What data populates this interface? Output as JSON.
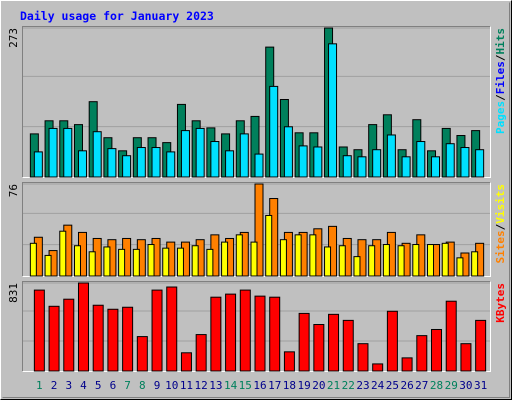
{
  "chart_data": [
    {
      "type": "bar",
      "title": "Daily usage for January 2023",
      "ylim": [
        0,
        273
      ],
      "yticks": [
        273
      ],
      "legend_separator": "/",
      "series": [
        {
          "name": "Hits",
          "color": "#00805c",
          "values": [
            79,
            103,
            103,
            96,
            138,
            72,
            48,
            72,
            72,
            63,
            133,
            103,
            90,
            79,
            103,
            111,
            238,
            142,
            81,
            81,
            273,
            55,
            50,
            96,
            114,
            50,
            105,
            48,
            89,
            76,
            85
          ]
        },
        {
          "name": "Files",
          "color": "#0000ff"
        },
        {
          "name": "Pages",
          "color": "#00e0ff",
          "values": [
            46,
            89,
            89,
            48,
            83,
            52,
            39,
            54,
            54,
            46,
            85,
            89,
            65,
            48,
            79,
            42,
            166,
            92,
            57,
            55,
            244,
            39,
            37,
            50,
            77,
            37,
            65,
            37,
            61,
            54,
            50
          ]
        }
      ]
    },
    {
      "type": "bar",
      "ylim": [
        0,
        76
      ],
      "yticks": [
        76
      ],
      "legend_separator": "/",
      "series": [
        {
          "name": "Visits",
          "color": "#ffff00",
          "values": [
            27,
            17,
            37,
            25,
            20,
            24,
            22,
            22,
            26,
            23,
            23,
            25,
            22,
            28,
            34,
            28,
            50,
            30,
            34,
            34,
            24,
            25,
            16,
            25,
            26,
            25,
            26,
            26,
            27,
            15,
            20
          ]
        },
        {
          "name": "Sites",
          "color": "#ff8000",
          "values": [
            32,
            21,
            42,
            36,
            31,
            30,
            31,
            30,
            31,
            28,
            28,
            30,
            34,
            31,
            36,
            76,
            64,
            36,
            36,
            39,
            41,
            31,
            30,
            30,
            36,
            27,
            34,
            26,
            28,
            19,
            27
          ]
        }
      ]
    },
    {
      "type": "bar",
      "ylim": [
        0,
        831
      ],
      "yticks": [
        831
      ],
      "series": [
        {
          "name": "KBytes",
          "color": "#ff0000",
          "values": [
            764,
            611,
            678,
            831,
            621,
            583,
            602,
            325,
            764,
            793,
            172,
            344,
            697,
            726,
            764,
            707,
            697,
            181,
            544,
            439,
            535,
            478,
            258,
            67,
            564,
            124,
            334,
            392,
            659,
            258,
            478
          ]
        }
      ],
      "categories": [
        "1",
        "2",
        "3",
        "4",
        "5",
        "6",
        "7",
        "8",
        "9",
        "10",
        "11",
        "12",
        "13",
        "14",
        "15",
        "16",
        "17",
        "18",
        "19",
        "20",
        "21",
        "22",
        "23",
        "24",
        "25",
        "26",
        "27",
        "28",
        "29",
        "30",
        "31"
      ],
      "weekend_indices": [
        0,
        6,
        7,
        13,
        14,
        20,
        21,
        27,
        28
      ],
      "weekend_color": "#00805c",
      "weekday_color": "#00008b"
    }
  ]
}
